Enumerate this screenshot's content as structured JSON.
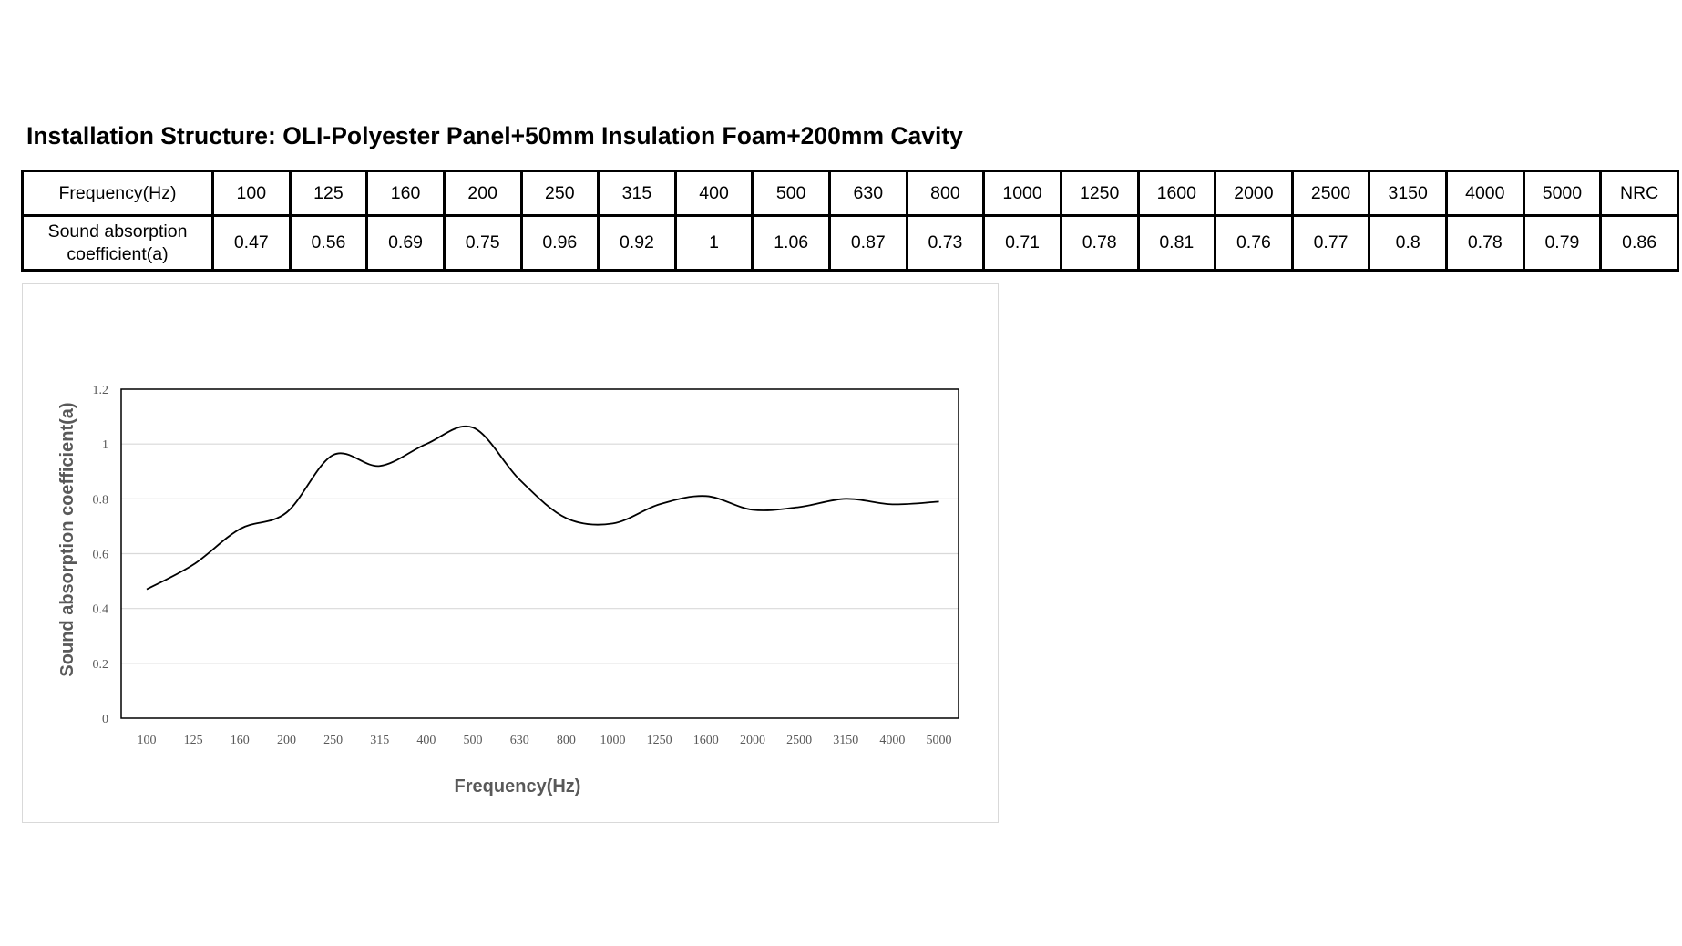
{
  "page": {
    "title": "Installation Structure: OLI-Polyester Panel+50mm Insulation Foam+200mm Cavity"
  },
  "table": {
    "row1_label": "Frequency(Hz)",
    "row2_label": "Sound absorption coefficient(a)",
    "frequencies": [
      "100",
      "125",
      "160",
      "200",
      "250",
      "315",
      "400",
      "500",
      "630",
      "800",
      "1000",
      "1250",
      "1600",
      "2000",
      "2500",
      "3150",
      "4000",
      "5000",
      "NRC"
    ],
    "coefficients": [
      "0.47",
      "0.56",
      "0.69",
      "0.75",
      "0.96",
      "0.92",
      "1",
      "1.06",
      "0.87",
      "0.73",
      "0.71",
      "0.78",
      "0.81",
      "0.76",
      "0.77",
      "0.8",
      "0.78",
      "0.79",
      "0.86"
    ]
  },
  "chart_data": {
    "type": "line",
    "categories": [
      "100",
      "125",
      "160",
      "200",
      "250",
      "315",
      "400",
      "500",
      "630",
      "800",
      "1000",
      "1250",
      "1600",
      "2000",
      "2500",
      "3150",
      "4000",
      "5000"
    ],
    "values": [
      0.47,
      0.56,
      0.69,
      0.75,
      0.96,
      0.92,
      1,
      1.06,
      0.87,
      0.73,
      0.71,
      0.78,
      0.81,
      0.76,
      0.77,
      0.8,
      0.78,
      0.79
    ],
    "xlabel": "Frequency(Hz)",
    "ylabel": "Sound absorption coefficient(a)",
    "ylim": [
      0,
      1.2
    ],
    "yticks": [
      "0",
      "0.2",
      "0.4",
      "0.6",
      "0.8",
      "1",
      "1.2"
    ],
    "grid": true,
    "line_color": "#000000",
    "grid_color": "#d9d9d9"
  }
}
